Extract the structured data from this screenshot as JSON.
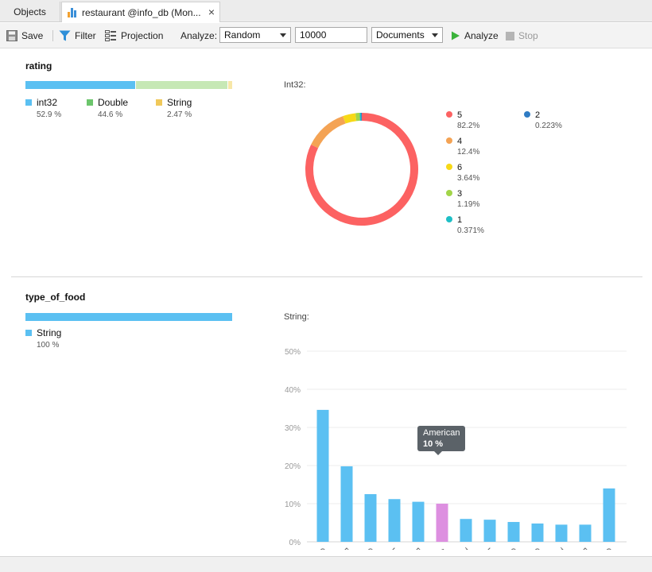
{
  "tabs": [
    {
      "label": "Objects"
    },
    {
      "label": "restaurant @info_db (Mon..."
    }
  ],
  "toolbar": {
    "save_label": "Save",
    "filter_label": "Filter",
    "projection_label": "Projection",
    "analyze_prefix": "Analyze:",
    "sampling_value": "Random",
    "count_value": "10000",
    "mode_value": "Documents",
    "analyze_label": "Analyze",
    "stop_label": "Stop"
  },
  "fields": [
    {
      "name": "rating",
      "types": [
        {
          "label": "int32",
          "pct_text": "52.9 %",
          "fraction": 0.529,
          "color": "#5bc0f2"
        },
        {
          "label": "Double",
          "pct_text": "44.6 %",
          "fraction": 0.446,
          "color": "#c6e8b5"
        },
        {
          "label": "String",
          "pct_text": "2.47 %",
          "fraction": 0.0247,
          "color": "#f7e7a8"
        }
      ],
      "legend_colors": [
        "#5bc0f2",
        "#6cc56c",
        "#f0c85a"
      ],
      "chart_label": "Int32:"
    },
    {
      "name": "type_of_food",
      "types": [
        {
          "label": "String",
          "pct_text": "100 %",
          "fraction": 1.0,
          "color": "#5bc0f2"
        }
      ],
      "legend_colors": [
        "#5bc0f2"
      ],
      "chart_label": "String:"
    }
  ],
  "chart_data": [
    {
      "type": "pie",
      "title": "Int32:",
      "labels": [
        "5",
        "4",
        "6",
        "3",
        "1",
        "2"
      ],
      "values": [
        82.2,
        12.4,
        3.64,
        1.19,
        0.371,
        0.223
      ],
      "value_labels": [
        "82.2%",
        "12.4%",
        "3.64%",
        "1.19%",
        "0.371%",
        "0.223%"
      ],
      "colors": [
        "#fc6262",
        "#f4a354",
        "#f7d917",
        "#a2d549",
        "#1ebfc6",
        "#2f7cc4"
      ],
      "legend_placement": "right"
    },
    {
      "type": "bar",
      "title": "String:",
      "categories": [
        "Curry",
        "Pizza",
        "Chinese",
        "Kebab",
        "Fish & Chips",
        "American",
        "Turkish",
        "Lebanese",
        "Chicken",
        "Caribbean",
        "Thai",
        "English",
        "Others"
      ],
      "values": [
        34.6,
        19.8,
        12.5,
        11.2,
        10.5,
        10,
        6.0,
        5.8,
        5.2,
        4.8,
        4.5,
        4.5,
        14.0
      ],
      "y_ticks": [
        "0%",
        "10%",
        "20%",
        "30%",
        "40%",
        "50%"
      ],
      "ylim": [
        0,
        50
      ],
      "grid": true,
      "bar_color": "#5bc0f2",
      "highlight_color": "#dd8fe0",
      "highlight_index": 5,
      "tooltip": {
        "label": "American",
        "value": "10 %"
      }
    }
  ]
}
